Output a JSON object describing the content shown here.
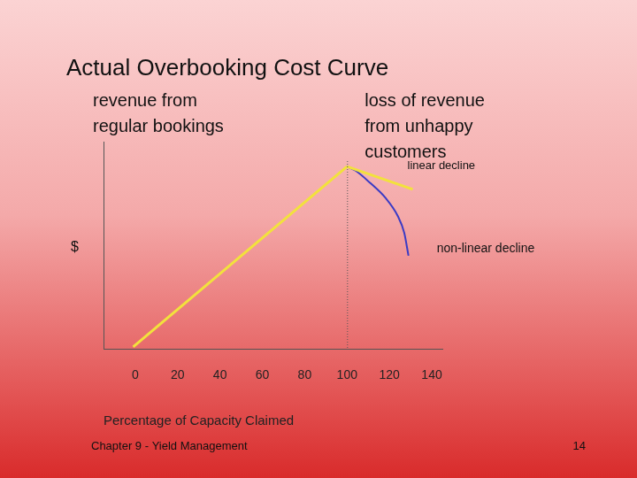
{
  "chart_data": {
    "type": "line",
    "title": "Actual Overbooking Cost Curve",
    "x_label": "Percentage of Capacity Claimed",
    "y_label": "$",
    "xlim": [
      -15,
      145
    ],
    "xticks": [
      0,
      20,
      40,
      60,
      80,
      100,
      120,
      140
    ],
    "ylim": [
      0,
      100
    ],
    "tick_labels": "x",
    "grid": false,
    "series": [
      {
        "name": "revenue from regular bookings",
        "color": "#f2e23c",
        "line_style": "solid",
        "x": [
          -1,
          100
        ],
        "values": [
          1,
          88
        ]
      },
      {
        "name": "linear decline",
        "color": "#f2e23c",
        "line_style": "solid",
        "x": [
          100,
          131
        ],
        "values": [
          88,
          77
        ]
      },
      {
        "name": "non-linear decline",
        "color": "#3b3bc4",
        "line_style": "smooth",
        "x": [
          100,
          104,
          111,
          118,
          124,
          127,
          129
        ],
        "values": [
          88,
          86,
          80,
          73,
          64,
          56,
          45
        ]
      }
    ],
    "annotations": [
      {
        "text": "loss of revenue from unhappy customers",
        "x": 100,
        "line_style": "dotted"
      }
    ]
  },
  "slide": {
    "footer": "Chapter 9 - Yield Management",
    "page_number": 14
  }
}
